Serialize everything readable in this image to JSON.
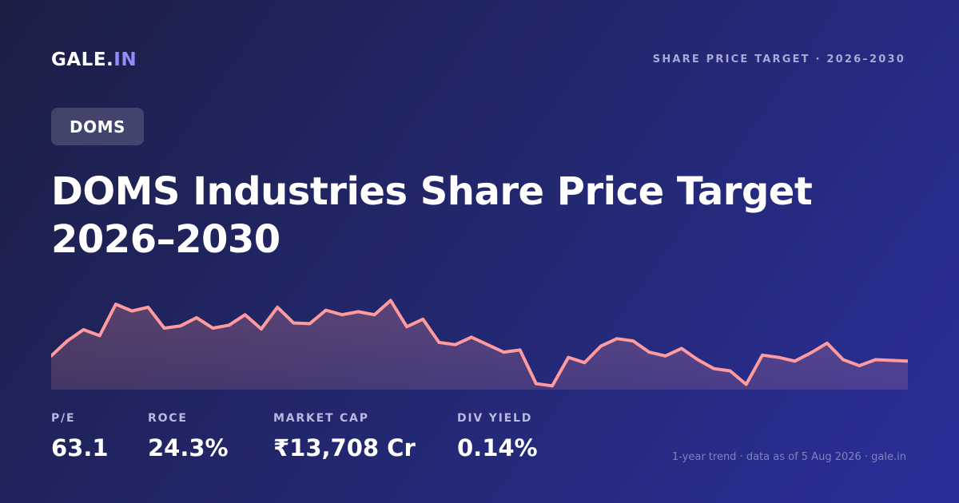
{
  "brand": {
    "name": "GALE.",
    "tld": "IN"
  },
  "header_tag": "SHARE PRICE TARGET · 2026–2030",
  "ticker": "DOMS",
  "title": "DOMS Industries Share Price Target 2026–2030",
  "colors": {
    "line": "#ff9a9e",
    "accent": "#8f8ff7",
    "fill": "#ff9a9e"
  },
  "stats": [
    {
      "label": "P/E",
      "value": "63.1"
    },
    {
      "label": "ROCE",
      "value": "24.3%"
    },
    {
      "label": "MARKET CAP",
      "value": "₹13,708 Cr"
    },
    {
      "label": "DIV YIELD",
      "value": "0.14%"
    }
  ],
  "footnote": "1-year trend · data as of 5 Aug 2026 · gale.in",
  "chart_data": {
    "type": "area",
    "series": [
      {
        "values": [
          445,
          425,
          410,
          418,
          376,
          385,
          380,
          408,
          405,
          394,
          408,
          404,
          390,
          409,
          380,
          401,
          402,
          384,
          390,
          386,
          390,
          371,
          406,
          396,
          427,
          430,
          420,
          430,
          440,
          437,
          482,
          485,
          447,
          454,
          432,
          422,
          425,
          440,
          445,
          435,
          450,
          462,
          465,
          483,
          444,
          447,
          452,
          441,
          428,
          450,
          458,
          450,
          451,
          452
        ]
      }
    ]
  }
}
